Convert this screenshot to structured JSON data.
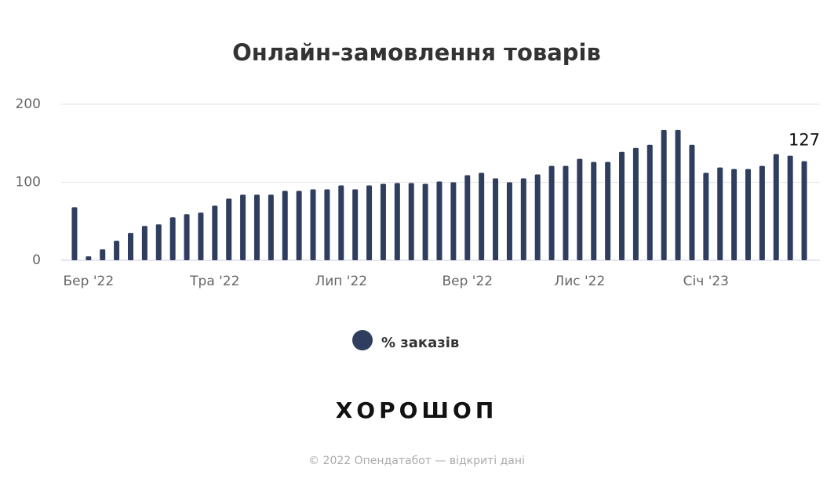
{
  "chart_data": {
    "type": "bar",
    "title": "Онлайн-замовлення товарів",
    "categories": [
      null,
      "Бер '22",
      null,
      null,
      null,
      null,
      null,
      null,
      null,
      null,
      "Тра '22",
      null,
      null,
      null,
      null,
      null,
      null,
      null,
      null,
      "Лип '22",
      null,
      null,
      null,
      null,
      null,
      null,
      null,
      null,
      "Вер '22",
      null,
      null,
      null,
      null,
      null,
      null,
      null,
      "Лис '22",
      null,
      null,
      null,
      null,
      null,
      null,
      null,
      null,
      "Січ '23",
      null,
      null,
      null,
      null,
      null,
      null,
      null
    ],
    "series": [
      {
        "name": "% заказів",
        "color": "#2f3e5e",
        "values": [
          68,
          5,
          14,
          25,
          35,
          44,
          46,
          55,
          59,
          61,
          70,
          79,
          84,
          84,
          84,
          89,
          89,
          91,
          91,
          96,
          91,
          96,
          98,
          99,
          99,
          98,
          101,
          100,
          109,
          112,
          105,
          100,
          105,
          110,
          121,
          121,
          130,
          126,
          126,
          139,
          144,
          148,
          167,
          167,
          148,
          112,
          119,
          117,
          117,
          121,
          136,
          134,
          127
        ],
        "value_labels": [
          null,
          null,
          null,
          null,
          null,
          null,
          null,
          null,
          null,
          null,
          null,
          null,
          null,
          null,
          null,
          null,
          null,
          null,
          null,
          null,
          null,
          null,
          null,
          null,
          null,
          null,
          null,
          null,
          null,
          null,
          null,
          null,
          null,
          null,
          null,
          null,
          null,
          null,
          null,
          null,
          null,
          null,
          null,
          null,
          null,
          null,
          null,
          null,
          null,
          null,
          null,
          null,
          "127"
        ]
      }
    ],
    "ylim": [
      0,
      200
    ],
    "yticks": [
      0,
      100,
      200
    ],
    "grid": true,
    "logo": "ХОРОШОП",
    "footer": "© 2022 Опендатабот — відкриті дані"
  }
}
